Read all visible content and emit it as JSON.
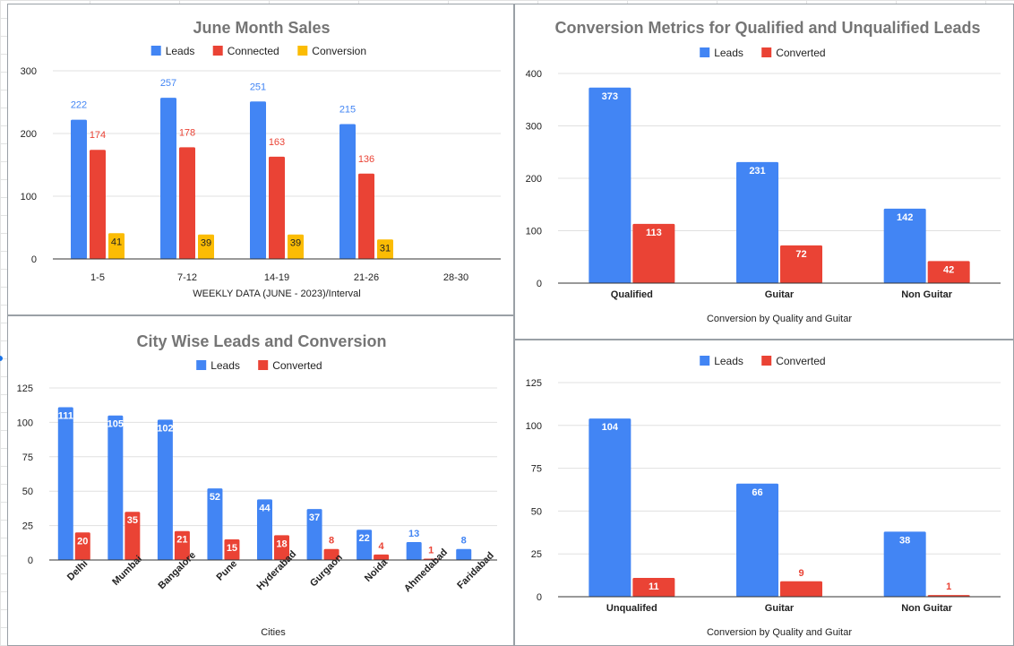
{
  "colors": {
    "leads": "#4285f4",
    "connected": "#ea4335",
    "conversion": "#fbbc04",
    "grid": "#e0e0e0",
    "axis": "#333333",
    "title": "#757575"
  },
  "chart_data": [
    {
      "id": "june",
      "type": "bar",
      "title": "June Month Sales",
      "xlabel": "WEEKLY DATA (JUNE - 2023)/Interval",
      "ylabel": "",
      "categories": [
        "1-5",
        "7-12",
        "14-19",
        "21-26",
        "28-30"
      ],
      "series": [
        {
          "name": "Leads",
          "color": "#4285f4",
          "values": [
            222,
            257,
            251,
            215,
            null
          ]
        },
        {
          "name": "Connected",
          "color": "#ea4335",
          "values": [
            174,
            178,
            163,
            136,
            null
          ]
        },
        {
          "name": "Conversion",
          "color": "#fbbc04",
          "values": [
            41,
            39,
            39,
            31,
            null
          ]
        }
      ],
      "ylim": [
        0,
        300
      ],
      "yticks": [
        0,
        100,
        200,
        300
      ],
      "grid": true,
      "legend": "top"
    },
    {
      "id": "qualified",
      "type": "bar",
      "title": "Conversion Metrics for Qualified and Unqualified Leads",
      "xlabel": "Conversion by Quality and Guitar",
      "ylabel": "",
      "categories": [
        "Qualified",
        "Guitar",
        "Non Guitar"
      ],
      "series": [
        {
          "name": "Leads",
          "color": "#4285f4",
          "values": [
            373,
            231,
            142
          ]
        },
        {
          "name": "Converted",
          "color": "#ea4335",
          "values": [
            113,
            72,
            42
          ]
        }
      ],
      "ylim": [
        0,
        400
      ],
      "yticks": [
        0,
        100,
        200,
        300,
        400
      ],
      "grid": true,
      "legend": "top"
    },
    {
      "id": "city",
      "type": "bar",
      "title": "City Wise Leads and Conversion",
      "xlabel": "Cities",
      "ylabel": "",
      "categories": [
        "Delhi",
        "Mumbai",
        "Bangalore",
        "Pune",
        "Hyderabad",
        "Gurgaon",
        "Noida",
        "Ahmedabad",
        "Faridabad"
      ],
      "series": [
        {
          "name": "Leads",
          "color": "#4285f4",
          "values": [
            111,
            105,
            102,
            52,
            44,
            37,
            22,
            13,
            8
          ]
        },
        {
          "name": "Converted",
          "color": "#ea4335",
          "values": [
            20,
            35,
            21,
            15,
            18,
            8,
            4,
            1,
            null
          ]
        }
      ],
      "ylim": [
        0,
        125
      ],
      "yticks": [
        0,
        25,
        50,
        75,
        100,
        125
      ],
      "grid": true,
      "legend": "top"
    },
    {
      "id": "unqualified",
      "type": "bar",
      "title": "",
      "xlabel": "Conversion by Quality and Guitar",
      "ylabel": "",
      "categories": [
        "Unqualifed",
        "Guitar",
        "Non Guitar"
      ],
      "series": [
        {
          "name": "Leads",
          "color": "#4285f4",
          "values": [
            104,
            66,
            38
          ]
        },
        {
          "name": "Converted",
          "color": "#ea4335",
          "values": [
            11,
            9,
            1
          ]
        }
      ],
      "ylim": [
        0,
        125
      ],
      "yticks": [
        0,
        25,
        50,
        75,
        100,
        125
      ],
      "grid": true,
      "legend": "top"
    }
  ]
}
